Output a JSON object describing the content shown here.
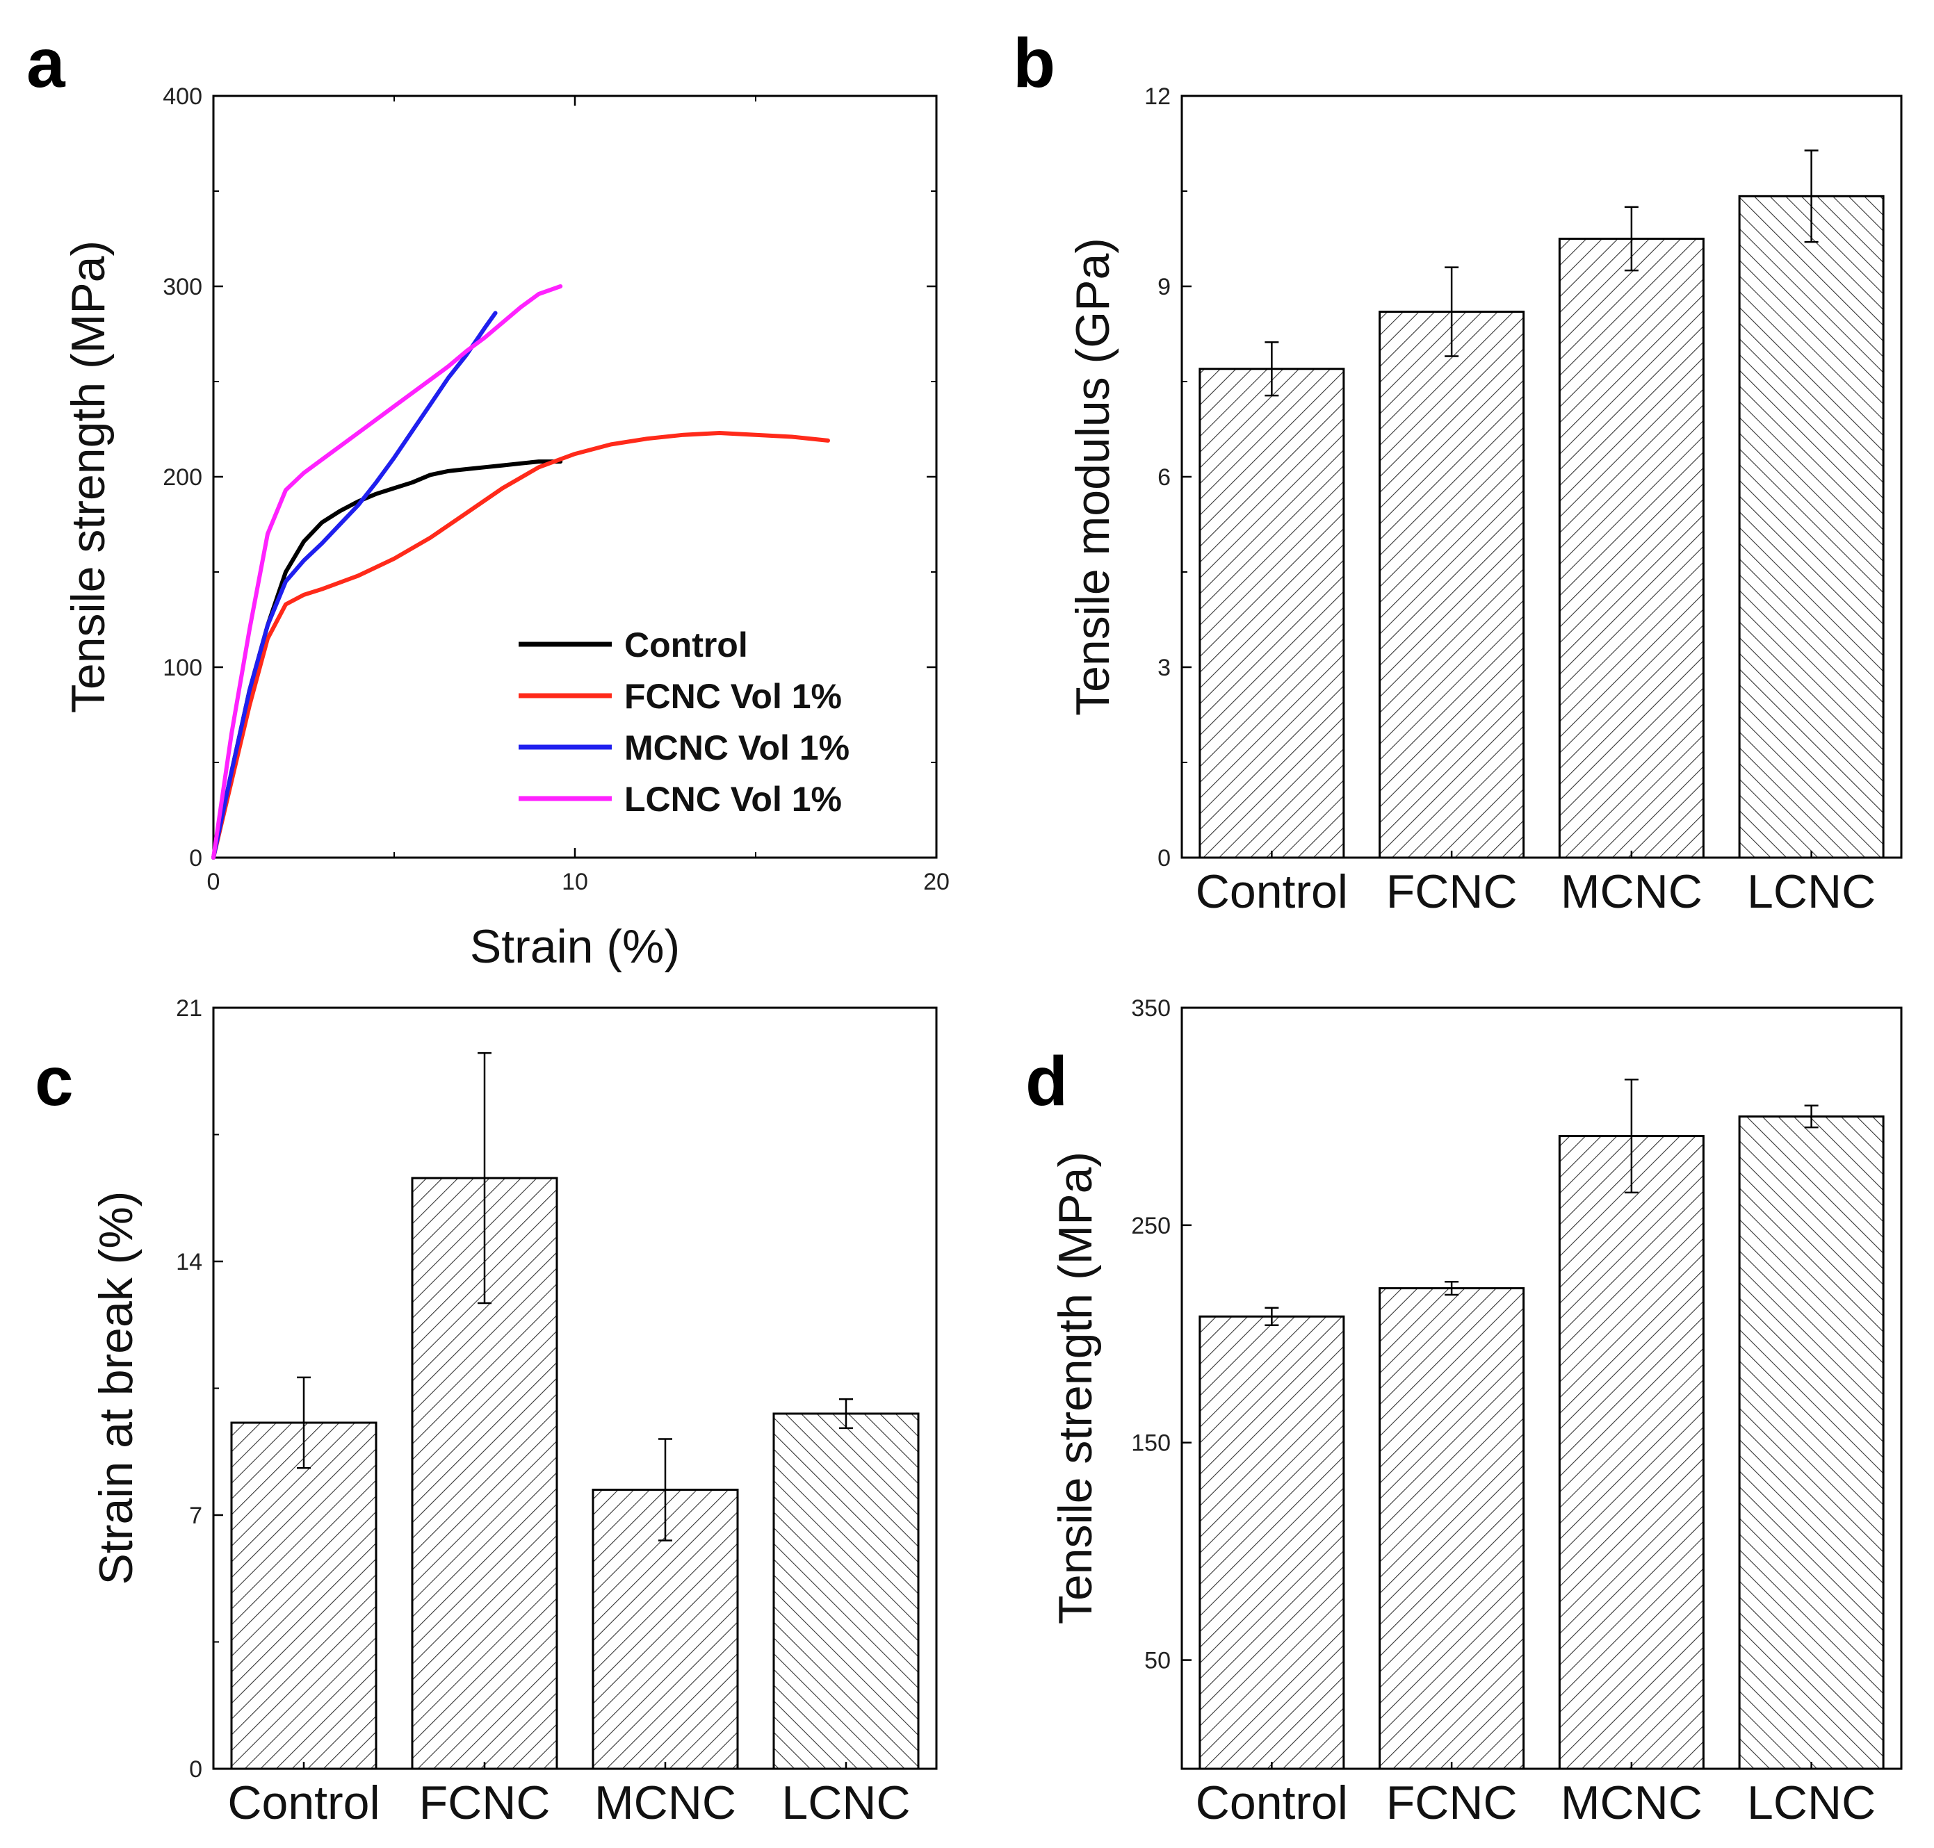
{
  "chart_data": [
    {
      "id": "a",
      "panel_label": "a",
      "type": "line",
      "xlabel": "Strain (%)",
      "ylabel": "Tensile strength (MPa)",
      "xlim": [
        0,
        20
      ],
      "ylim": [
        0,
        400
      ],
      "xticks": [
        0,
        10,
        20
      ],
      "yticks": [
        0,
        100,
        200,
        300,
        400
      ],
      "legend_position": "lower-right",
      "series": [
        {
          "name": "Control",
          "color": "#000000",
          "x": [
            0,
            0.5,
            1,
            1.5,
            2,
            2.5,
            3,
            3.5,
            4,
            4.5,
            5,
            5.5,
            6,
            6.5,
            7,
            7.5,
            8,
            8.5,
            9,
            9.6
          ],
          "y": [
            0,
            45,
            88,
            122,
            150,
            166,
            176,
            182,
            187,
            191,
            194,
            197,
            201,
            203,
            204,
            205,
            206,
            207,
            208,
            208
          ]
        },
        {
          "name": "FCNC Vol 1%",
          "color": "#ff2a1a",
          "x": [
            0,
            0.5,
            1,
            1.5,
            2,
            2.5,
            3,
            4,
            5,
            6,
            7,
            8,
            9,
            10,
            11,
            12,
            13,
            14,
            15,
            16,
            17
          ],
          "y": [
            0,
            40,
            80,
            115,
            133,
            138,
            141,
            148,
            157,
            168,
            181,
            194,
            205,
            212,
            217,
            220,
            222,
            223,
            222,
            221,
            219
          ]
        },
        {
          "name": "MCNC Vol 1%",
          "color": "#1f1fee",
          "x": [
            0,
            0.5,
            1,
            1.5,
            2,
            2.5,
            3,
            3.5,
            4,
            4.5,
            5,
            5.5,
            6,
            6.5,
            7,
            7.5,
            7.8
          ],
          "y": [
            0,
            45,
            88,
            122,
            145,
            156,
            165,
            175,
            185,
            197,
            210,
            224,
            238,
            252,
            264,
            278,
            286
          ]
        },
        {
          "name": "LCNC Vol 1%",
          "color": "#ff22ff",
          "x": [
            0,
            0.5,
            1,
            1.5,
            2,
            2.5,
            3,
            3.5,
            4,
            4.5,
            5,
            5.5,
            6,
            6.5,
            7,
            7.5,
            8,
            8.5,
            9,
            9.6
          ],
          "y": [
            0,
            65,
            120,
            170,
            193,
            202,
            209,
            216,
            223,
            230,
            237,
            244,
            251,
            258,
            266,
            273,
            281,
            289,
            296,
            300
          ]
        }
      ]
    },
    {
      "id": "b",
      "panel_label": "b",
      "type": "bar",
      "ylabel": "Tensile modulus (GPa)",
      "categories": [
        "Control",
        "FCNC",
        "MCNC",
        "LCNC"
      ],
      "values": [
        7.7,
        8.6,
        9.75,
        10.42
      ],
      "errors": [
        0.42,
        0.7,
        0.5,
        0.72
      ],
      "ylim": [
        0,
        12
      ],
      "yticks": [
        0,
        3,
        6,
        9,
        12
      ],
      "hatch": [
        "right",
        "right",
        "right",
        "left"
      ]
    },
    {
      "id": "c",
      "panel_label": "c",
      "type": "bar",
      "ylabel": "Strain at break (%)",
      "categories": [
        "Control",
        "FCNC",
        "MCNC",
        "LCNC"
      ],
      "values": [
        9.55,
        16.3,
        7.7,
        9.8
      ],
      "errors": [
        1.25,
        3.45,
        1.4,
        0.4
      ],
      "ylim": [
        0,
        21
      ],
      "yticks": [
        0,
        7,
        14,
        21
      ],
      "hatch": [
        "right",
        "right",
        "right",
        "left"
      ]
    },
    {
      "id": "d",
      "panel_label": "d",
      "type": "bar",
      "ylabel": "Tensile strength (MPa)",
      "categories": [
        "Control",
        "FCNC",
        "MCNC",
        "LCNC"
      ],
      "values": [
        208,
        221,
        291,
        300
      ],
      "errors": [
        4,
        3,
        26,
        5
      ],
      "ylim": [
        0,
        350
      ],
      "yticks": [
        50,
        150,
        250,
        350
      ],
      "hatch": [
        "right",
        "right",
        "right",
        "left"
      ]
    }
  ]
}
